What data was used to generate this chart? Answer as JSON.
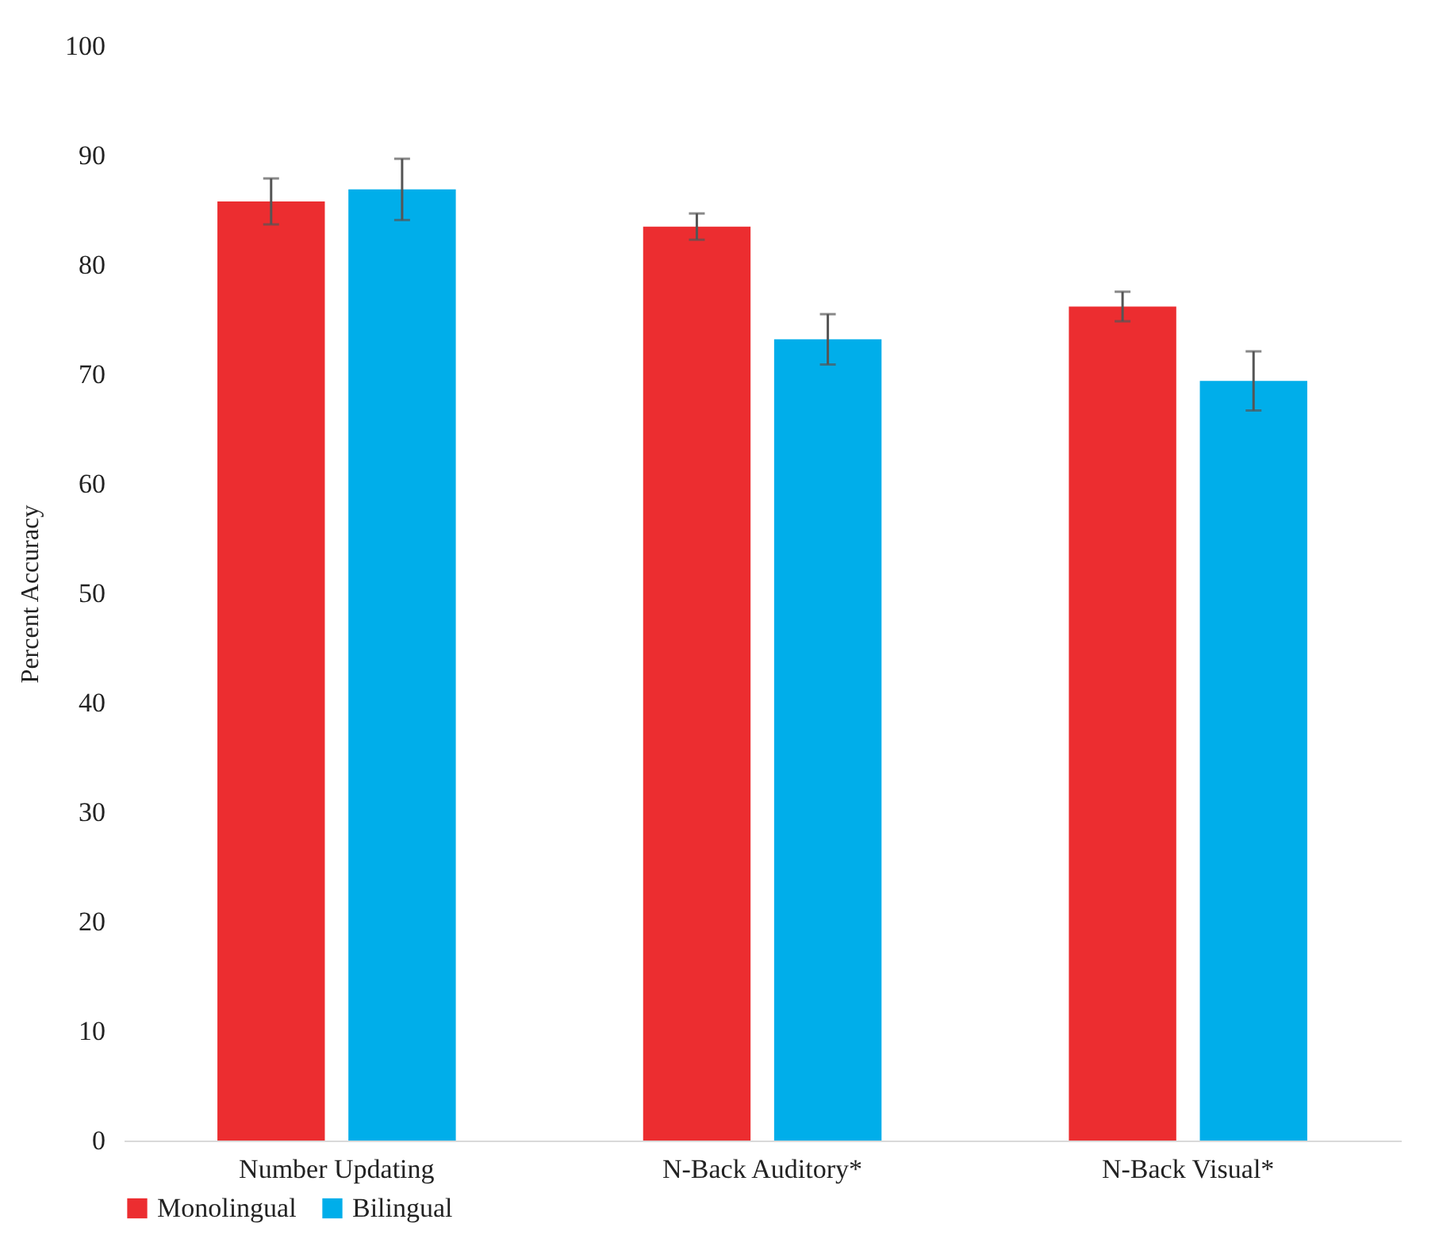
{
  "chart_data": {
    "type": "bar",
    "ylabel": "Percent Accuracy",
    "categories": [
      "Number Updating",
      "N-Back Auditory*",
      "N-Back Visual*"
    ],
    "series": [
      {
        "name": "Monolingual",
        "color": "#ec2d30",
        "values": [
          85.8,
          83.5,
          76.2
        ],
        "errors": [
          2.1,
          1.2,
          1.35
        ]
      },
      {
        "name": "Bilingual",
        "color": "#00aeea",
        "values": [
          86.9,
          73.2,
          69.4
        ],
        "errors": [
          2.8,
          2.3,
          2.7
        ]
      }
    ],
    "ylim": [
      0,
      100
    ],
    "yticks": [
      0,
      10,
      20,
      30,
      40,
      50,
      60,
      70,
      80,
      90,
      100
    ],
    "grid": false,
    "legend": "bottom"
  }
}
